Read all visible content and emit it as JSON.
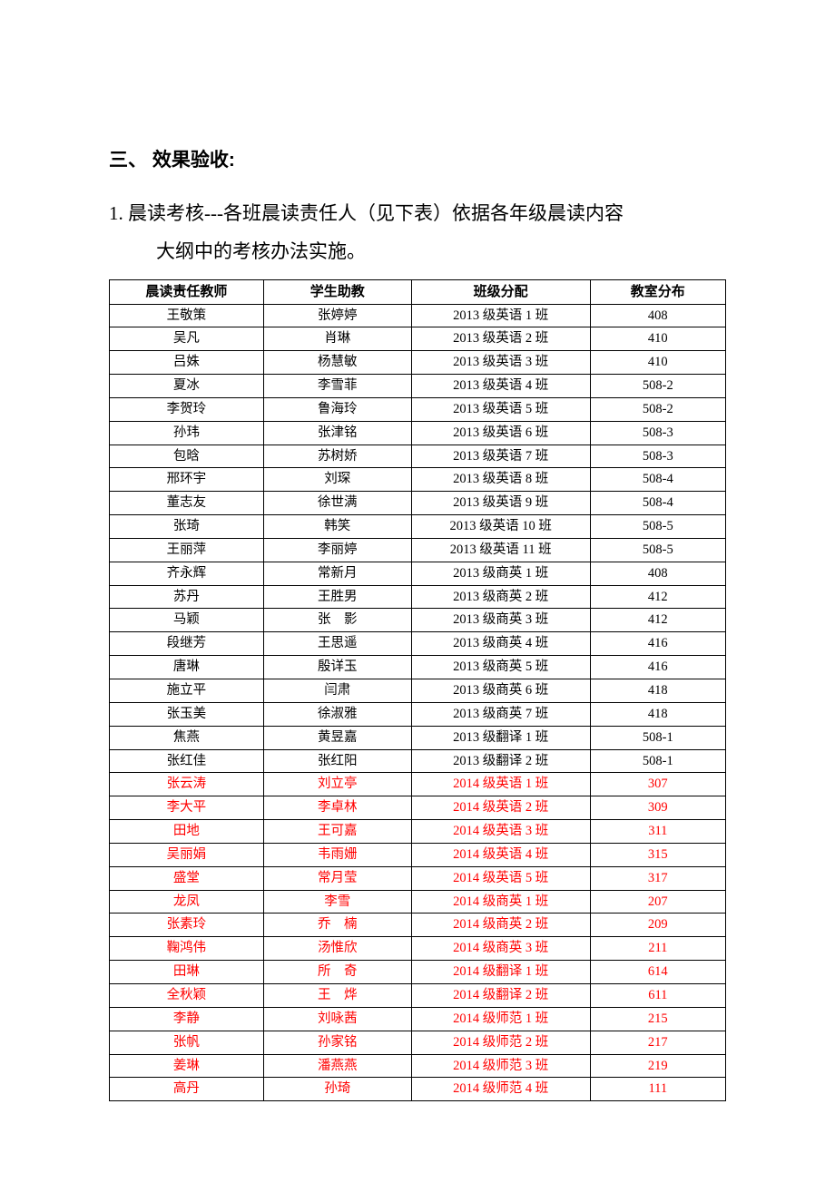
{
  "heading": "三、 效果验收:",
  "paragraph_line1": "1. 晨读考核---各班晨读责任人（见下表）依据各年级晨读内容",
  "paragraph_line2": "大纲中的考核办法实施。",
  "table": {
    "columns": [
      "晨读责任教师",
      "学生助教",
      "班级分配",
      "教室分布"
    ],
    "rows": [
      {
        "teacher": "王敬策",
        "assistant": "张婷婷",
        "class": "2013 级英语 1 班",
        "room": "408",
        "color": "black"
      },
      {
        "teacher": "吴凡",
        "assistant": "肖琳",
        "class": "2013 级英语 2 班",
        "room": "410",
        "color": "black"
      },
      {
        "teacher": "吕姝",
        "assistant": "杨慧敏",
        "class": "2013 级英语 3 班",
        "room": "410",
        "color": "black"
      },
      {
        "teacher": "夏冰",
        "assistant": "李雪菲",
        "class": "2013 级英语 4 班",
        "room": "508-2",
        "color": "black"
      },
      {
        "teacher": "李贺玲",
        "assistant": "鲁海玲",
        "class": "2013 级英语 5 班",
        "room": "508-2",
        "color": "black"
      },
      {
        "teacher": "孙玮",
        "assistant": "张津铭",
        "class": "2013 级英语 6 班",
        "room": "508-3",
        "color": "black"
      },
      {
        "teacher": "包晗",
        "assistant": "苏树娇",
        "class": "2013 级英语 7 班",
        "room": "508-3",
        "color": "black"
      },
      {
        "teacher": "邢环宇",
        "assistant": "刘琛",
        "class": "2013 级英语 8 班",
        "room": "508-4",
        "color": "black"
      },
      {
        "teacher": "董志友",
        "assistant": "徐世满",
        "class": "2013 级英语 9 班",
        "room": "508-4",
        "color": "black"
      },
      {
        "teacher": "张琦",
        "assistant": "韩笑",
        "class": "2013 级英语 10 班",
        "room": "508-5",
        "color": "black"
      },
      {
        "teacher": "王丽萍",
        "assistant": "李丽婷",
        "class": "2013 级英语 11 班",
        "room": "508-5",
        "color": "black"
      },
      {
        "teacher": "齐永辉",
        "assistant": "常新月",
        "class": "2013 级商英 1 班",
        "room": "408",
        "color": "black"
      },
      {
        "teacher": "苏丹",
        "assistant": "王胜男",
        "class": "2013 级商英 2 班",
        "room": "412",
        "color": "black"
      },
      {
        "teacher": "马颖",
        "assistant": "张　影",
        "class": "2013 级商英 3 班",
        "room": "412",
        "color": "black"
      },
      {
        "teacher": "段继芳",
        "assistant": "王思遥",
        "class": "2013 级商英 4 班",
        "room": "416",
        "color": "black"
      },
      {
        "teacher": "唐琳",
        "assistant": "殷详玉",
        "class": "2013 级商英 5 班",
        "room": "416",
        "color": "black"
      },
      {
        "teacher": "施立平",
        "assistant": "闫肃",
        "class": "2013 级商英 6 班",
        "room": "418",
        "color": "black"
      },
      {
        "teacher": "张玉美",
        "assistant": "徐淑雅",
        "class": "2013 级商英 7 班",
        "room": "418",
        "color": "black"
      },
      {
        "teacher": "焦燕",
        "assistant": "黄昱嘉",
        "class": "2013 级翻译 1 班",
        "room": "508-1",
        "color": "black"
      },
      {
        "teacher": "张红佳",
        "assistant": "张红阳",
        "class": "2013 级翻译 2 班",
        "room": "508-1",
        "color": "black"
      },
      {
        "teacher": "张云涛",
        "assistant": "刘立亭",
        "class": "2014 级英语 1 班",
        "room": "307",
        "color": "red"
      },
      {
        "teacher": "李大平",
        "assistant": "李卓林",
        "class": "2014 级英语 2 班",
        "room": "309",
        "color": "red"
      },
      {
        "teacher": "田地",
        "assistant": "王可嘉",
        "class": "2014 级英语 3 班",
        "room": "311",
        "color": "red"
      },
      {
        "teacher": "吴丽娟",
        "assistant": "韦雨姗",
        "class": "2014 级英语 4 班",
        "room": "315",
        "color": "red"
      },
      {
        "teacher": "盛堂",
        "assistant": "常月莹",
        "class": "2014 级英语 5 班",
        "room": "317",
        "color": "red"
      },
      {
        "teacher": "龙凤",
        "assistant": "李雪",
        "class": "2014 级商英 1 班",
        "room": "207",
        "color": "red"
      },
      {
        "teacher": "张素玲",
        "assistant": "乔　楠",
        "class": "2014 级商英 2 班",
        "room": "209",
        "color": "red"
      },
      {
        "teacher": "鞠鸿伟",
        "assistant": "汤惟欣",
        "class": "2014 级商英 3 班",
        "room": "211",
        "color": "red"
      },
      {
        "teacher": "田琳",
        "assistant": "所　奇",
        "class": "2014 级翻译 1 班",
        "room": "614",
        "color": "red"
      },
      {
        "teacher": "全秋颖",
        "assistant": "王　烨",
        "class": "2014 级翻译 2 班",
        "room": "611",
        "color": "red"
      },
      {
        "teacher": "李静",
        "assistant": "刘咏茜",
        "class": "2014 级师范 1 班",
        "room": "215",
        "color": "red"
      },
      {
        "teacher": "张帆",
        "assistant": "孙家铭",
        "class": "2014 级师范 2 班",
        "room": "217",
        "color": "red"
      },
      {
        "teacher": "姜琳",
        "assistant": "潘燕燕",
        "class": "2014 级师范 3 班",
        "room": "219",
        "color": "red"
      },
      {
        "teacher": "高丹",
        "assistant": "孙琦",
        "class": "2014 级师范 4 班",
        "room": "111",
        "color": "red"
      }
    ]
  }
}
